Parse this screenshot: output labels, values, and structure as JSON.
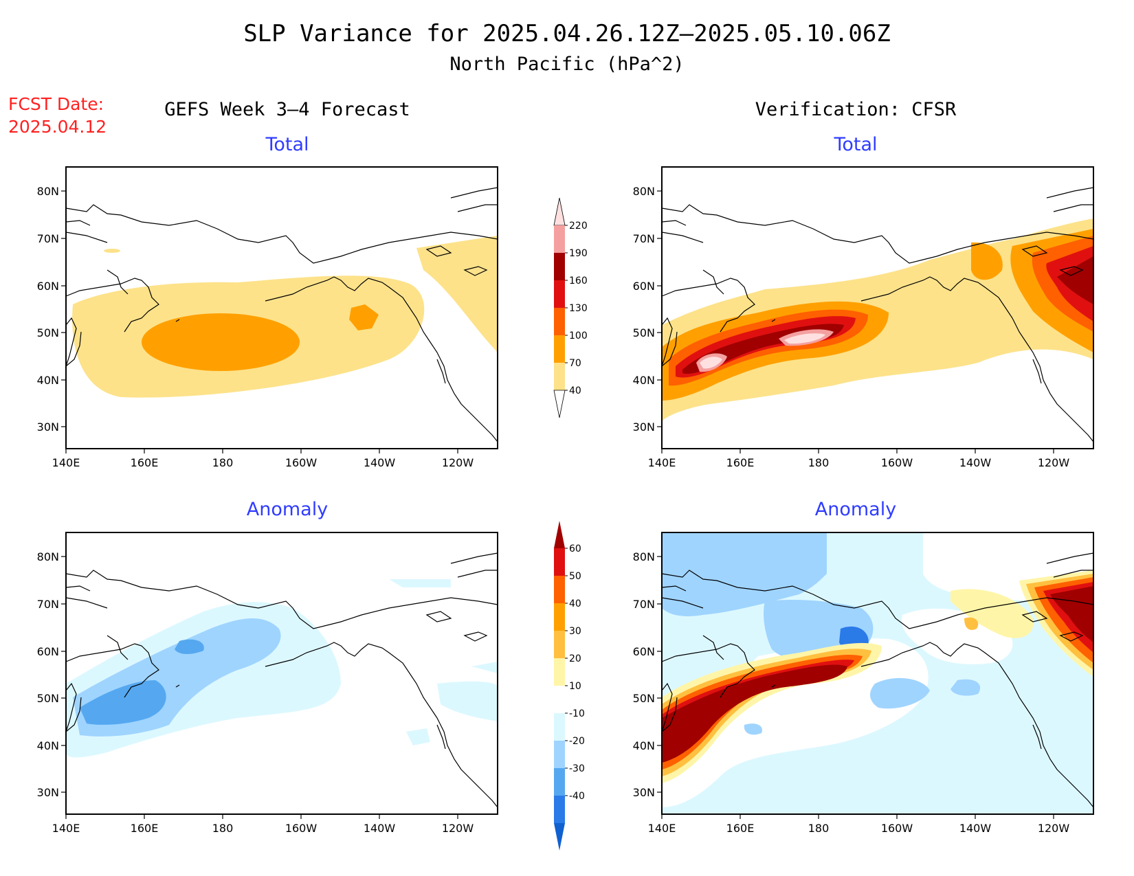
{
  "header": {
    "title": "SLP Variance for 2025.04.26.12Z—2025.05.10.06Z",
    "subtitle": "North Pacific (hPa^2)",
    "fcst_label": "FCST Date:",
    "fcst_date": "2025.04.12"
  },
  "columns": {
    "left": "GEFS Week 3—4 Forecast",
    "right": "Verification: CFSR"
  },
  "panels": {
    "tl": "Total",
    "tr": "Total",
    "bl": "Anomaly",
    "br": "Anomaly"
  },
  "axes": {
    "lon_labels": [
      "140E",
      "160E",
      "180",
      "160W",
      "140W",
      "120W"
    ],
    "lat_labels": [
      "80N",
      "70N",
      "60N",
      "50N",
      "40N",
      "30N"
    ]
  },
  "colorbar_total": {
    "levels": [
      "220",
      "190",
      "160",
      "130",
      "100",
      "70",
      "40"
    ],
    "colors": [
      "#ffe0e0",
      "#f4a0a0",
      "#a00000",
      "#e01010",
      "#ff6000",
      "#ffa000",
      "#fde28a"
    ]
  },
  "colorbar_anomaly": {
    "levels": [
      "60",
      "50",
      "40",
      "30",
      "20",
      "10",
      "-10",
      "-20",
      "-30",
      "-40"
    ],
    "colors": [
      "#a00000",
      "#e01010",
      "#ff6000",
      "#ffa000",
      "#ffc040",
      "#fff5a8",
      "#ffffff",
      "#dcf8ff",
      "#9fd4ff",
      "#55a8f0",
      "#2a7ae8",
      "#1060d0"
    ]
  }
}
